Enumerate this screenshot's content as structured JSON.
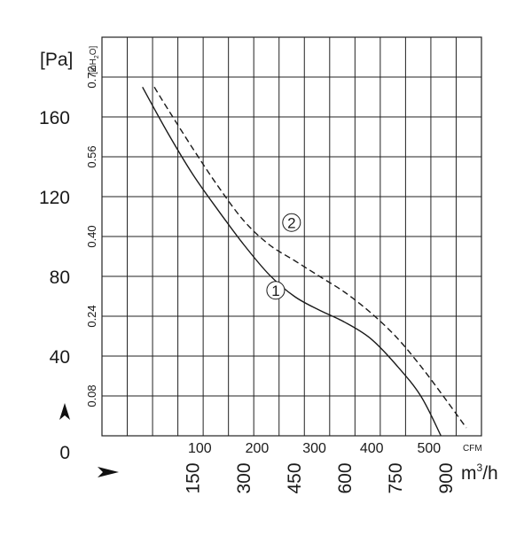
{
  "chart_data": {
    "type": "line",
    "title": "",
    "units": {
      "pressure_pa": "[Pa]",
      "pressure_inh2o": "[inH2O]",
      "pressure_inh2o_main": "[inH",
      "pressure_inh2o_sub": "2",
      "pressure_inh2o_end": "O]",
      "flow_cfm": "CFM",
      "flow_m3h_main": "m",
      "flow_m3h_sup": "3",
      "flow_m3h_end": "/h"
    },
    "y_axis": {
      "unit": "Pa",
      "range": [
        0,
        180
      ],
      "grid_step": 20,
      "ticks": [
        {
          "value": 0,
          "label": "0"
        },
        {
          "value": 40,
          "label": "40"
        },
        {
          "value": 80,
          "label": "80"
        },
        {
          "value": 120,
          "label": "120"
        },
        {
          "value": 160,
          "label": "160"
        }
      ]
    },
    "y2_axis": {
      "unit": "inH2O",
      "ticks": [
        {
          "pa": 20,
          "label": "0.08"
        },
        {
          "pa": 60,
          "label": "0.24"
        },
        {
          "pa": 100,
          "label": "0.40"
        },
        {
          "pa": 140,
          "label": "0.56"
        },
        {
          "pa": 180,
          "label": "0.72"
        }
      ]
    },
    "x_axis": {
      "unit": "m3/h",
      "range": [
        -120,
        1005
      ],
      "grid_step": 75,
      "ticks": [
        {
          "value": 150,
          "label": "150"
        },
        {
          "value": 300,
          "label": "300"
        },
        {
          "value": 450,
          "label": "450"
        },
        {
          "value": 600,
          "label": "600"
        },
        {
          "value": 750,
          "label": "750"
        },
        {
          "value": 900,
          "label": "900"
        }
      ]
    },
    "x2_axis": {
      "unit": "CFM",
      "ticks": [
        {
          "cfm": 100,
          "label": "100"
        },
        {
          "cfm": 200,
          "label": "200"
        },
        {
          "cfm": 300,
          "label": "300"
        },
        {
          "cfm": 400,
          "label": "400"
        },
        {
          "cfm": 500,
          "label": "500"
        }
      ]
    },
    "grid": true,
    "series": [
      {
        "name": "1",
        "style": "solid",
        "points": [
          [
            0,
            175
          ],
          [
            75,
            152
          ],
          [
            150,
            131
          ],
          [
            225,
            113
          ],
          [
            300,
            96
          ],
          [
            375,
            81
          ],
          [
            450,
            70
          ],
          [
            525,
            63
          ],
          [
            600,
            57
          ],
          [
            675,
            49
          ],
          [
            750,
            36
          ],
          [
            825,
            20
          ],
          [
            885,
            0
          ]
        ]
      },
      {
        "name": "2",
        "style": "dashed",
        "points": [
          [
            35,
            175
          ],
          [
            75,
            164
          ],
          [
            150,
            144
          ],
          [
            225,
            125
          ],
          [
            300,
            108
          ],
          [
            375,
            96
          ],
          [
            450,
            88
          ],
          [
            525,
            80
          ],
          [
            600,
            72
          ],
          [
            675,
            62
          ],
          [
            750,
            50
          ],
          [
            825,
            35
          ],
          [
            900,
            18
          ],
          [
            960,
            4
          ]
        ]
      }
    ],
    "series_labels": [
      {
        "series": "1",
        "text": "1",
        "x": 395,
        "y": 73
      },
      {
        "series": "2",
        "text": "2",
        "x": 442,
        "y": 107
      }
    ]
  }
}
